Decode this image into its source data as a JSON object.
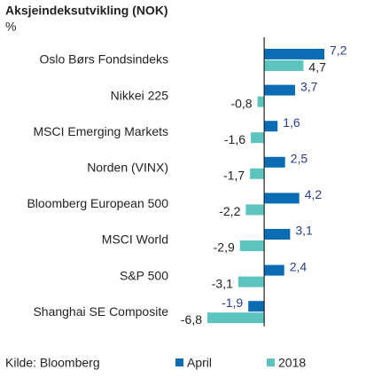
{
  "chart_data": {
    "type": "hbar",
    "title": "Aksjeindeksutvikling (NOK)",
    "subtitle": "%",
    "source": "Kilde: Bloomberg",
    "categories": [
      "Oslo Børs Fondsindeks",
      "Nikkei 225",
      "MSCI Emerging Markets",
      "Norden (VINX)",
      "Bloomberg European 500",
      "MSCI World",
      "S&P 500",
      "Shanghai SE Composite"
    ],
    "series": [
      {
        "name": "April",
        "color": "#0a6db3",
        "label_color": "#2b3d8a",
        "values": [
          7.2,
          3.7,
          1.6,
          2.5,
          4.2,
          3.1,
          2.4,
          -1.9
        ],
        "value_labels": [
          "7,2",
          "3,7",
          "1,6",
          "2,5",
          "4,2",
          "3,1",
          "2,4",
          "-1,9"
        ]
      },
      {
        "name": "2018",
        "color": "#5cc3bf",
        "label_color": "#222222",
        "values": [
          4.7,
          -0.8,
          -1.6,
          -1.7,
          -2.2,
          -2.9,
          -3.1,
          -6.8
        ],
        "value_labels": [
          "4,7",
          "-0,8",
          "-1,6",
          "-1,7",
          "-2,2",
          "-2,9",
          "-3,1",
          "-6,8"
        ]
      }
    ]
  }
}
